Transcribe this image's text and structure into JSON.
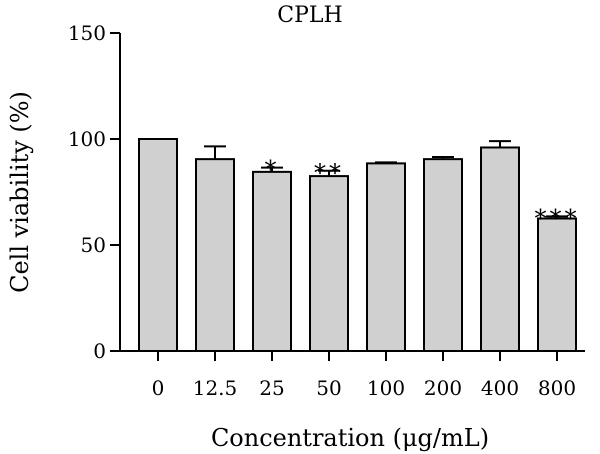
{
  "chart_data": {
    "type": "bar",
    "title": "CPLH",
    "xlabel": "Concentration (μg/mL)",
    "ylabel": "Cell viability (%)",
    "ylim": [
      0,
      150
    ],
    "yticks": [
      0,
      50,
      100,
      150
    ],
    "categories": [
      "0",
      "12.5",
      "25",
      "50",
      "100",
      "200",
      "400",
      "800"
    ],
    "values": [
      100,
      90.5,
      84.5,
      82.5,
      88.5,
      90.5,
      96,
      62.5
    ],
    "errors": [
      0,
      6,
      2,
      2.5,
      0.5,
      1,
      3,
      1
    ],
    "significance": [
      "",
      "",
      "*",
      "**",
      "",
      "",
      "",
      "***"
    ],
    "bar_color": "#d0d0d0",
    "bar_edge_color": "#000000",
    "grid": false,
    "legend": "none"
  }
}
